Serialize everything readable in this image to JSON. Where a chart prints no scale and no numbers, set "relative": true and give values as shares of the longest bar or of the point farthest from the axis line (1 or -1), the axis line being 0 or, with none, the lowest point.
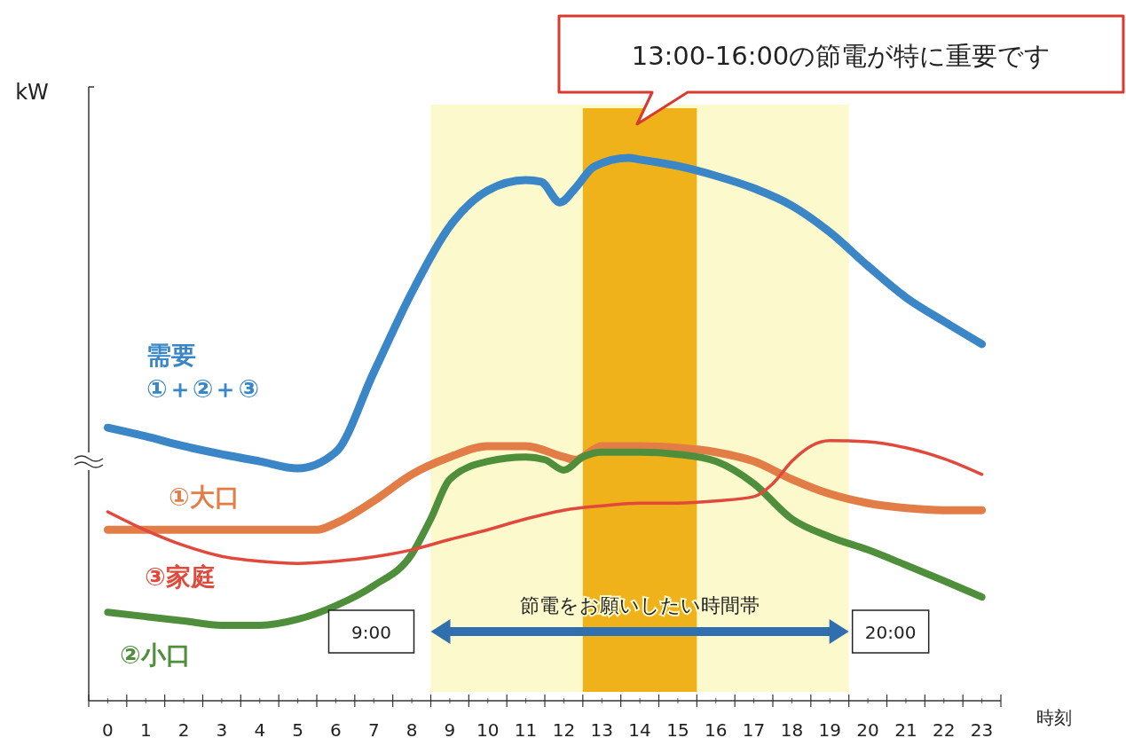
{
  "chart_data": {
    "type": "line",
    "relative": true,
    "xlabel": "時刻",
    "ylabel": "kW",
    "xlim": [
      -0.5,
      23.5
    ],
    "xticks": [
      0,
      1,
      2,
      3,
      4,
      5,
      6,
      7,
      8,
      9,
      10,
      11,
      12,
      13,
      14,
      15,
      16,
      17,
      18,
      19,
      20,
      21,
      22,
      23
    ],
    "series": [
      {
        "name": "需要\n①＋②＋③",
        "color": "#3a86c6",
        "x": [
          0,
          1,
          2,
          3,
          4,
          5,
          6,
          7,
          8,
          9,
          10,
          11,
          11.4,
          11.9,
          12.3,
          12.8,
          13.7,
          14,
          15,
          16,
          17,
          18,
          19,
          20,
          21,
          22,
          23
        ],
        "values": [
          0.503,
          0.487,
          0.469,
          0.454,
          0.441,
          0.428,
          0.458,
          0.605,
          0.752,
          0.874,
          0.94,
          0.959,
          0.956,
          0.918,
          0.944,
          0.984,
          1,
          0.997,
          0.985,
          0.967,
          0.944,
          0.912,
          0.863,
          0.801,
          0.743,
          0.699,
          0.657
        ]
      },
      {
        "name": "①大口",
        "color": "#e27d47",
        "x": [
          0,
          5.5,
          6,
          7,
          8,
          9,
          10,
          11,
          12,
          12.3,
          13,
          14,
          15,
          16,
          17,
          18,
          19,
          20,
          21,
          22,
          23
        ],
        "values": [
          0.315,
          0.315,
          0.327,
          0.368,
          0.417,
          0.449,
          0.469,
          0.469,
          0.449,
          0.444,
          0.469,
          0.469,
          0.466,
          0.458,
          0.441,
          0.408,
          0.381,
          0.364,
          0.355,
          0.351,
          0.351
        ]
      },
      {
        "name": "②小口",
        "color": "#4f8f3b",
        "x": [
          0,
          1,
          2,
          3,
          4,
          5,
          6,
          7,
          8,
          8.5,
          9,
          10,
          11,
          11.5,
          12,
          12.5,
          13,
          14,
          15,
          16,
          17,
          18,
          19,
          20,
          21,
          22,
          23
        ],
        "values": [
          0.163,
          0.155,
          0.147,
          0.139,
          0.139,
          0.15,
          0.175,
          0.212,
          0.27,
          0.335,
          0.408,
          0.441,
          0.449,
          0.444,
          0.425,
          0.449,
          0.458,
          0.458,
          0.454,
          0.441,
          0.4,
          0.335,
          0.302,
          0.278,
          0.25,
          0.221,
          0.191
        ]
      },
      {
        "name": "③家庭",
        "color": "#e0493b",
        "x": [
          0,
          1,
          2,
          3,
          4,
          5,
          6,
          7,
          8,
          9,
          10,
          11,
          12,
          13,
          14,
          15,
          16,
          17,
          17.5,
          18,
          18.5,
          19,
          20,
          21,
          22,
          23
        ],
        "values": [
          0.348,
          0.314,
          0.286,
          0.266,
          0.257,
          0.253,
          0.257,
          0.265,
          0.278,
          0.297,
          0.315,
          0.335,
          0.351,
          0.359,
          0.364,
          0.364,
          0.368,
          0.376,
          0.4,
          0.441,
          0.469,
          0.479,
          0.477,
          0.466,
          0.446,
          0.417
        ]
      }
    ],
    "bands": [
      {
        "axis": "x",
        "from": 8.5,
        "to": 19.5,
        "label": "節電をお願いしたい時間帯",
        "color": "#fcf9cc"
      },
      {
        "axis": "x",
        "from": 12.5,
        "to": 15.5,
        "color": "#f0b21b"
      }
    ],
    "annotations": [
      "13:00-16:00の節電が特に重要です",
      "9:00",
      "20:00"
    ]
  }
}
